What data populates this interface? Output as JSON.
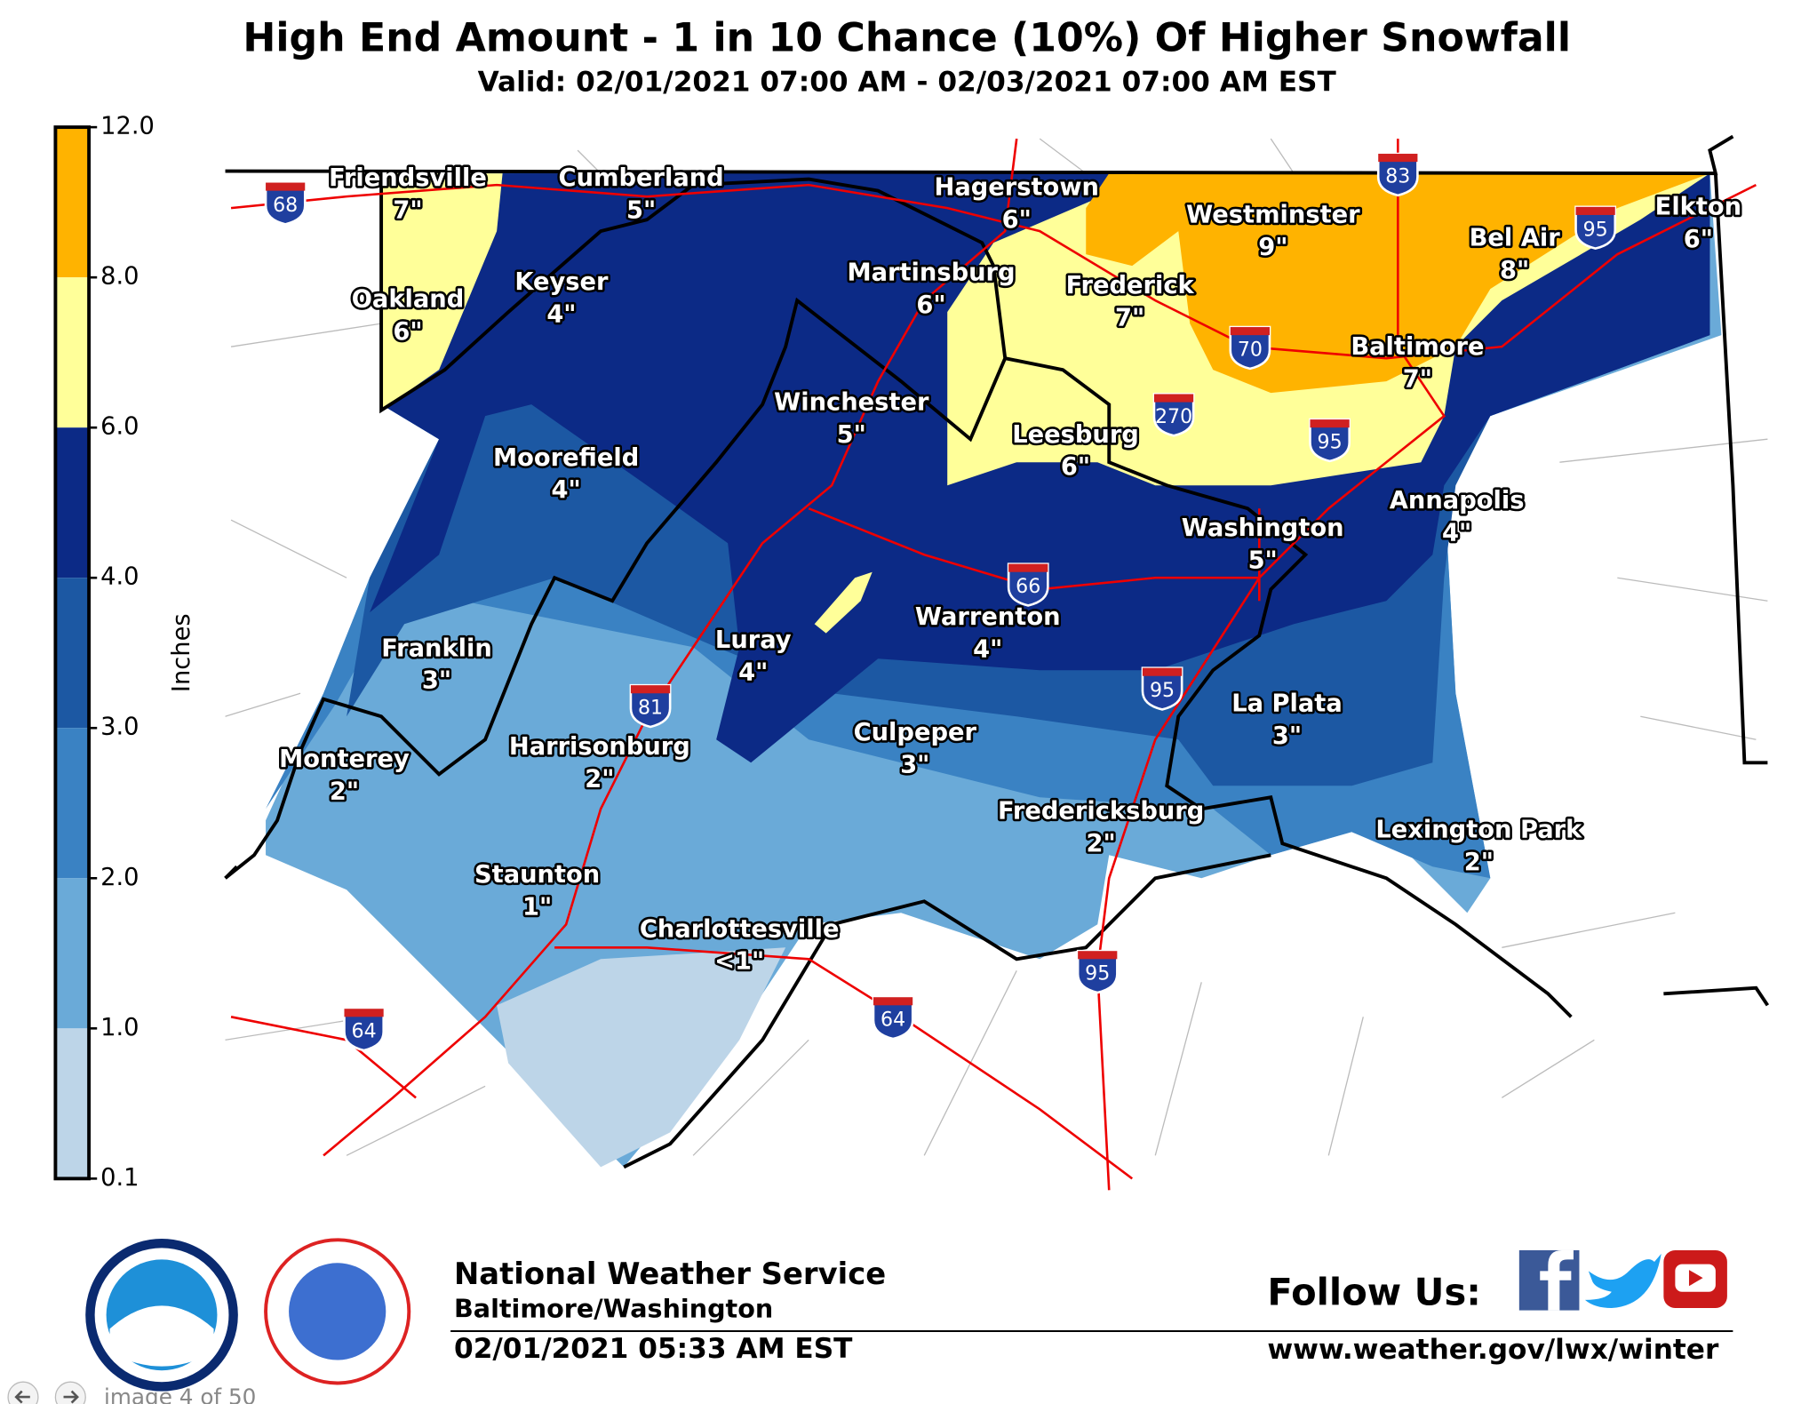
{
  "header": {
    "title": "High End Amount - 1 in 10 Chance (10%) Of Higher Snowfall",
    "subtitle": "Valid: 02/01/2021 07:00 AM - 02/03/2021 07:00 AM EST"
  },
  "legend": {
    "label": "Inches",
    "ticks": [
      "12.0",
      "8.0",
      "6.0",
      "4.0",
      "3.0",
      "2.0",
      "1.0",
      "0.1"
    ]
  },
  "cities": [
    {
      "name": "Friendsville",
      "amount": "7\""
    },
    {
      "name": "Cumberland",
      "amount": "5\""
    },
    {
      "name": "Hagerstown",
      "amount": "6\""
    },
    {
      "name": "Westminster",
      "amount": "9\""
    },
    {
      "name": "Bel Air",
      "amount": "8\""
    },
    {
      "name": "Elkton",
      "amount": "6\""
    },
    {
      "name": "Oakland",
      "amount": "6\""
    },
    {
      "name": "Keyser",
      "amount": "4\""
    },
    {
      "name": "Martinsburg",
      "amount": "6\""
    },
    {
      "name": "Frederick",
      "amount": "7\""
    },
    {
      "name": "Baltimore",
      "amount": "7\""
    },
    {
      "name": "Winchester",
      "amount": "5\""
    },
    {
      "name": "Leesburg",
      "amount": "6\""
    },
    {
      "name": "Moorefield",
      "amount": "4\""
    },
    {
      "name": "Annapolis",
      "amount": "4\""
    },
    {
      "name": "Washington",
      "amount": "5\""
    },
    {
      "name": "Warrenton",
      "amount": "4\""
    },
    {
      "name": "Luray",
      "amount": "4\""
    },
    {
      "name": "Franklin",
      "amount": "3\""
    },
    {
      "name": "La Plata",
      "amount": "3\""
    },
    {
      "name": "Culpeper",
      "amount": "3\""
    },
    {
      "name": "Harrisonburg",
      "amount": "2\""
    },
    {
      "name": "Monterey",
      "amount": "2\""
    },
    {
      "name": "Fredericksburg",
      "amount": "2\""
    },
    {
      "name": "Lexington Park",
      "amount": "2\""
    },
    {
      "name": "Staunton",
      "amount": "1\""
    },
    {
      "name": "Charlottesville",
      "amount": "<1\""
    }
  ],
  "interstates": [
    "68",
    "83",
    "95",
    "70",
    "270",
    "95",
    "66",
    "81",
    "95",
    "95",
    "64",
    "64"
  ],
  "footer": {
    "org": "National Weather Service",
    "office": "Baltimore/Washington",
    "issued": "02/01/2021 05:33 AM EST",
    "follow": "Follow Us:",
    "url": "www.weather.gov/lwx/winter"
  },
  "nav": "image 4 of 50"
}
